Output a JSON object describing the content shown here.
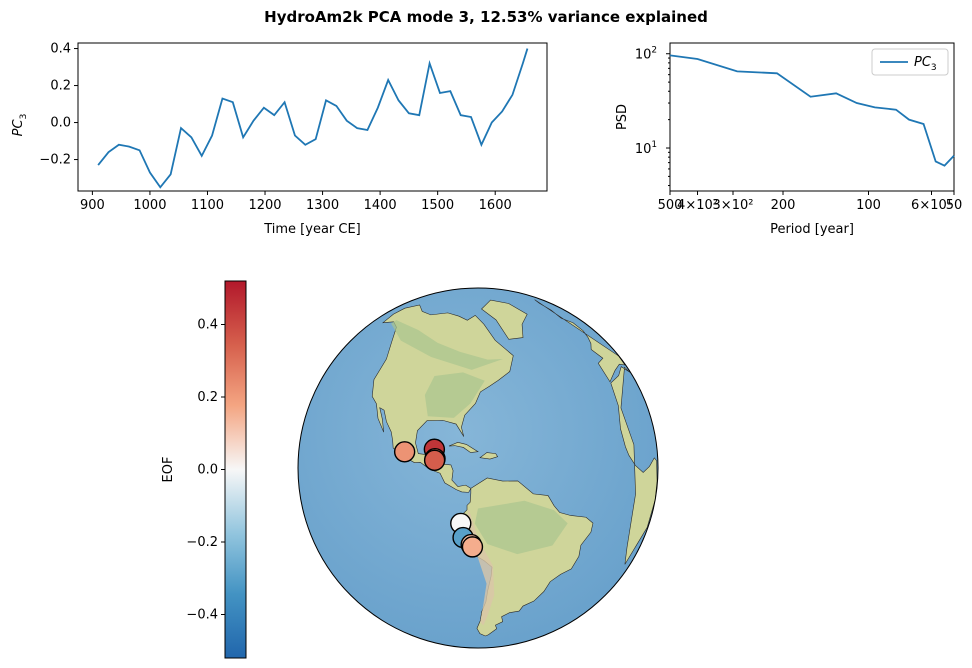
{
  "title": "HydroAm2k PCA mode 3, 12.53% variance explained",
  "chart_data": [
    {
      "type": "line",
      "xlabel": "Time [year CE]",
      "ylabel": "PC3",
      "ylabel_base": "PC",
      "ylabel_sub": "3",
      "xlim": [
        875,
        1690
      ],
      "ylim": [
        -0.37,
        0.43
      ],
      "xticks": [
        900,
        1000,
        1100,
        1200,
        1300,
        1400,
        1500,
        1600
      ],
      "yticks": [
        -0.2,
        0.0,
        0.2,
        0.4
      ],
      "ytick_labels": [
        "−0.2",
        "0.0",
        "0.2",
        "0.4"
      ],
      "color": "#1f77b4",
      "x": [
        910,
        928,
        946,
        964,
        982,
        1000,
        1018,
        1036,
        1054,
        1072,
        1090,
        1108,
        1126,
        1144,
        1162,
        1180,
        1198,
        1216,
        1234,
        1252,
        1270,
        1288,
        1306,
        1324,
        1342,
        1360,
        1378,
        1396,
        1414,
        1432,
        1450,
        1468,
        1486,
        1504,
        1522,
        1540,
        1558,
        1576,
        1594,
        1612,
        1630,
        1648,
        1656
      ],
      "y": [
        -0.23,
        -0.16,
        -0.12,
        -0.13,
        -0.15,
        -0.27,
        -0.35,
        -0.28,
        -0.03,
        -0.08,
        -0.18,
        -0.07,
        0.13,
        0.11,
        -0.08,
        0.01,
        0.08,
        0.04,
        0.11,
        -0.07,
        -0.12,
        -0.09,
        0.12,
        0.09,
        0.01,
        -0.03,
        -0.04,
        0.08,
        0.23,
        0.12,
        0.05,
        0.04,
        0.32,
        0.16,
        0.17,
        0.04,
        0.03,
        -0.12,
        0.0,
        0.06,
        0.15,
        0.32,
        0.4
      ]
    },
    {
      "type": "line",
      "log_scale": "both",
      "xlabel": "Period [year]",
      "ylabel": "PSD",
      "xlim": [
        500,
        50
      ],
      "ylim": [
        3.5,
        130
      ],
      "color": "#1f77b4",
      "legend": {
        "label": "PC3",
        "base": "PC",
        "sub": "3",
        "placement": "top-right"
      },
      "xtick_labels": [
        {
          "text": "500",
          "at": 500
        },
        {
          "text": "4×10²",
          "at": 400
        },
        {
          "text": "3×10²",
          "at": 300
        },
        {
          "text": "200",
          "at": 200
        },
        {
          "text": "100",
          "at": 100
        },
        {
          "text": "6×10¹",
          "at": 60
        },
        {
          "text": "50",
          "at": 50
        }
      ],
      "yticks": [
        {
          "base": "10",
          "exp": "1",
          "at": 10
        },
        {
          "base": "10",
          "exp": "2",
          "at": 100
        }
      ],
      "x": [
        500,
        400,
        290,
        210,
        160,
        130,
        110,
        95,
        80,
        72,
        64,
        58,
        54,
        50
      ],
      "y": [
        96,
        88,
        65,
        62,
        35,
        38,
        30,
        27,
        25.5,
        20,
        18,
        7.2,
        6.5,
        8.3
      ]
    },
    {
      "type": "scatter",
      "subtype": "orthographic-map",
      "colorbar": {
        "label": "EOF",
        "range": [
          -0.52,
          0.52
        ],
        "ticks": [
          -0.4,
          -0.2,
          0.0,
          0.2,
          0.4
        ],
        "tick_labels": [
          "−0.4",
          "−0.2",
          "0.0",
          "0.2",
          "0.4"
        ]
      },
      "sites": [
        {
          "lon": -90.0,
          "lat": 20.5,
          "value": 0.45
        },
        {
          "lon": -100.5,
          "lat": 18.8,
          "value": 0.22
        },
        {
          "lon": -89.5,
          "lat": 17.5,
          "value": 0.28
        },
        {
          "lon": -89.6,
          "lat": 17.0,
          "value": 0.35
        },
        {
          "lon": -80.5,
          "lat": -3.0,
          "value": 0.0
        },
        {
          "lon": -79.8,
          "lat": -7.8,
          "value": -0.3
        },
        {
          "lon": -77.2,
          "lat": -10.2,
          "value": 0.12
        },
        {
          "lon": -76.8,
          "lat": -11.0,
          "value": 0.16
        }
      ]
    }
  ]
}
